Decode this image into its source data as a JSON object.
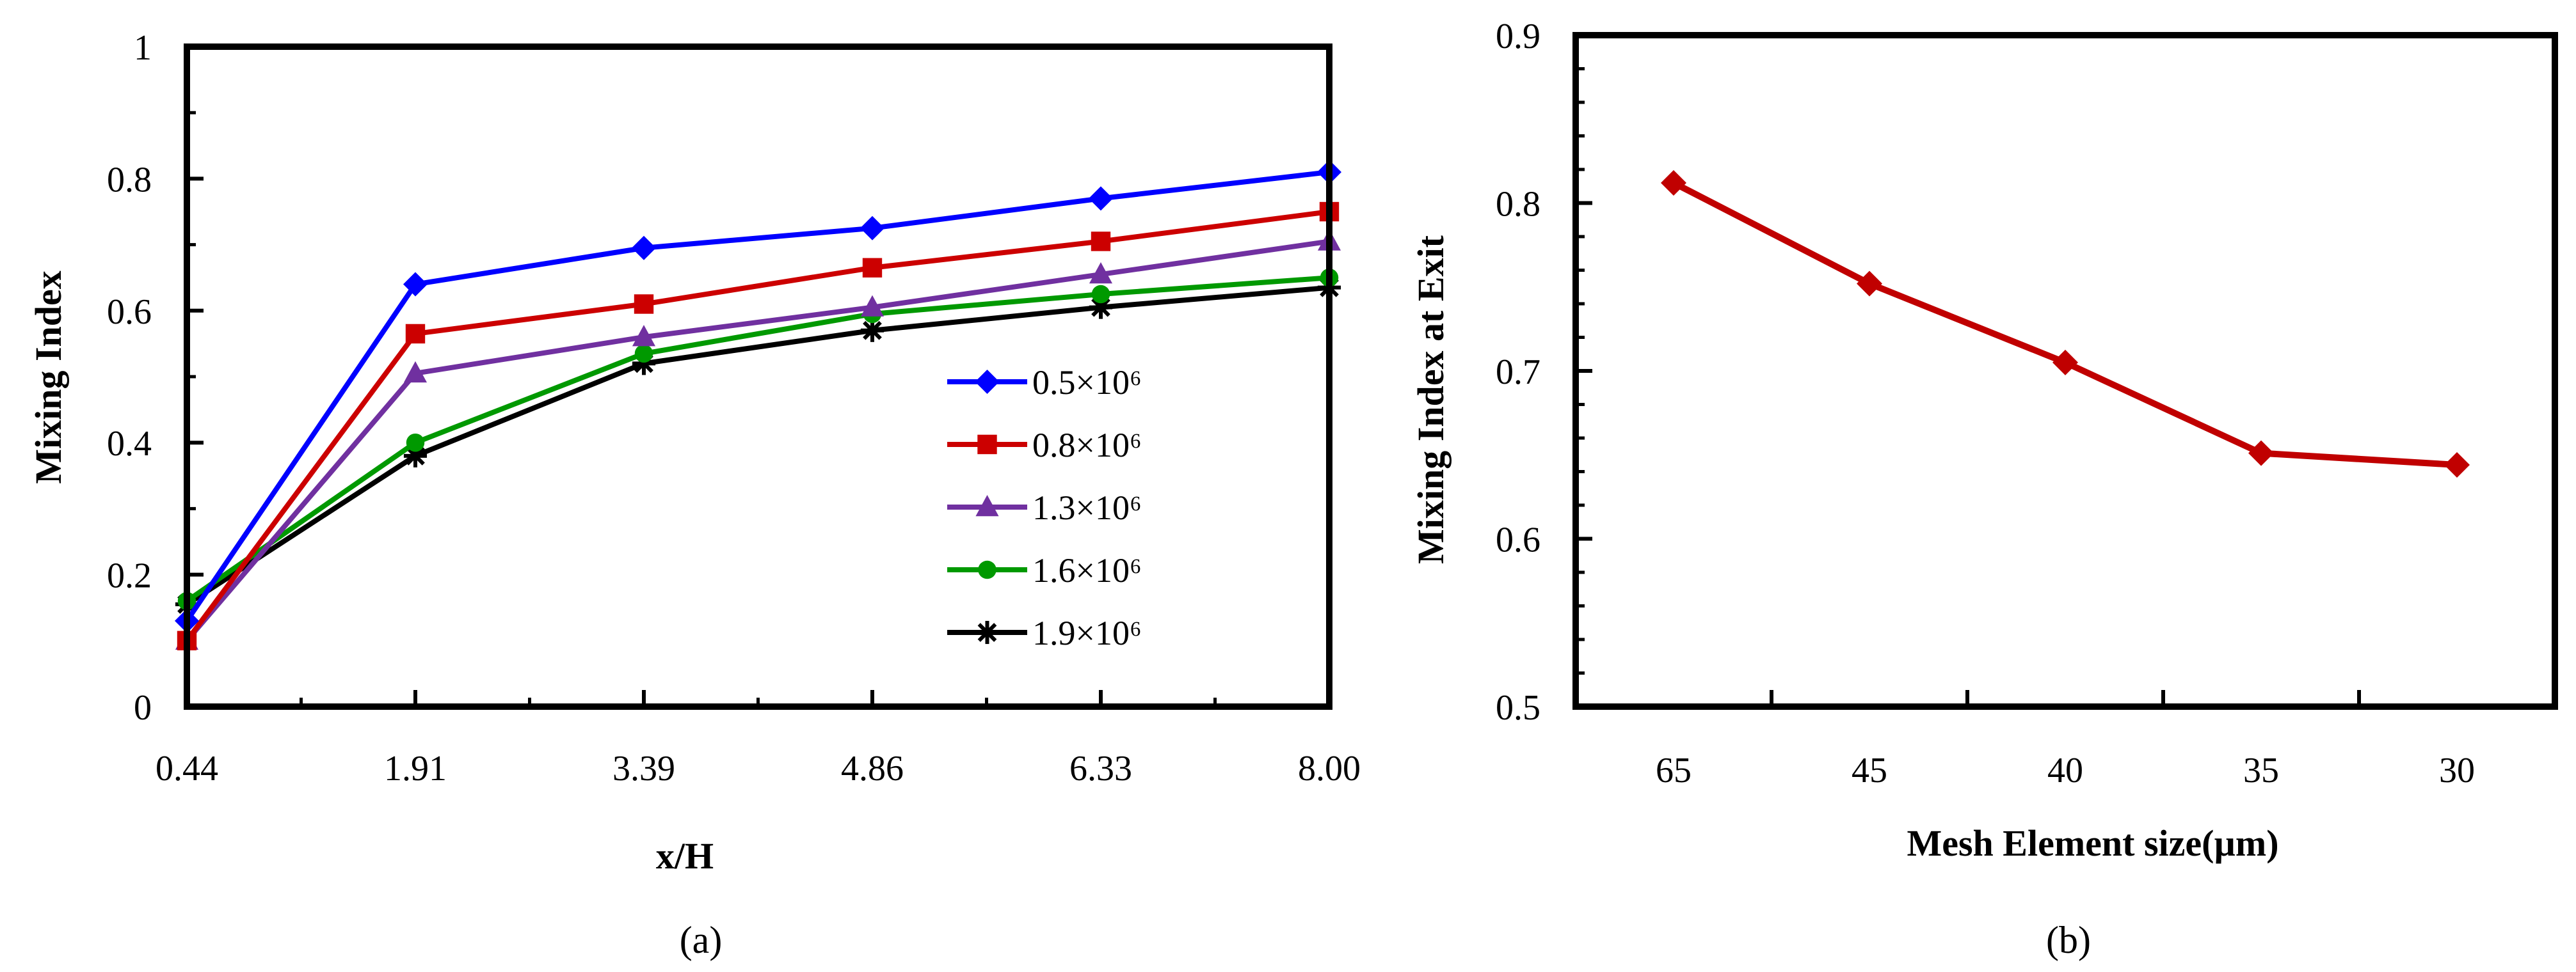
{
  "chart_data": [
    {
      "type": "line",
      "panel": "(a)",
      "title": "",
      "xlabel": "x/H",
      "ylabel": "Mixing Index",
      "categories": [
        "0.44",
        "1.91",
        "3.39",
        "4.86",
        "6.33",
        "8.00"
      ],
      "ylim": [
        0,
        1
      ],
      "yticks": [
        "0",
        "0.2",
        "0.4",
        "0.6",
        "0.8",
        "1"
      ],
      "yticks_values": [
        0,
        0.2,
        0.4,
        0.6,
        0.8,
        1
      ],
      "legend_position": "center-right",
      "series": [
        {
          "name": "0.5×10⁶",
          "color": "#0000FF",
          "marker": "diamond",
          "values": [
            0.13,
            0.64,
            0.695,
            0.725,
            0.77,
            0.81
          ]
        },
        {
          "name": "0.8×10⁶",
          "color": "#CC0000",
          "marker": "square",
          "values": [
            0.1,
            0.565,
            0.61,
            0.665,
            0.705,
            0.75
          ]
        },
        {
          "name": "1.3×10⁶",
          "color": "#7030A0",
          "marker": "triangle",
          "values": [
            0.1,
            0.505,
            0.56,
            0.605,
            0.655,
            0.705
          ]
        },
        {
          "name": "1.6×10⁶",
          "color": "#009900",
          "marker": "circle",
          "values": [
            0.16,
            0.4,
            0.535,
            0.595,
            0.625,
            0.65
          ]
        },
        {
          "name": "1.9×10⁶",
          "color": "#000000",
          "marker": "star",
          "values": [
            0.155,
            0.38,
            0.52,
            0.57,
            0.605,
            0.635
          ]
        }
      ]
    },
    {
      "type": "line",
      "panel": "(b)",
      "title": "",
      "xlabel": "Mesh Element size(µm)",
      "ylabel": "Mixing Index at Exit",
      "categories": [
        "65",
        "45",
        "40",
        "35",
        "30"
      ],
      "ylim": [
        0.5,
        0.9
      ],
      "yticks": [
        "0.5",
        "0.6",
        "0.7",
        "0.8",
        "0.9"
      ],
      "yticks_values": [
        0.5,
        0.6,
        0.7,
        0.8,
        0.9
      ],
      "series": [
        {
          "name": "Mixing Index at Exit",
          "color": "#C00000",
          "marker": "diamond",
          "values": [
            0.812,
            0.752,
            0.705,
            0.651,
            0.644
          ]
        }
      ]
    }
  ],
  "captions": [
    "(a)",
    "(b)"
  ]
}
